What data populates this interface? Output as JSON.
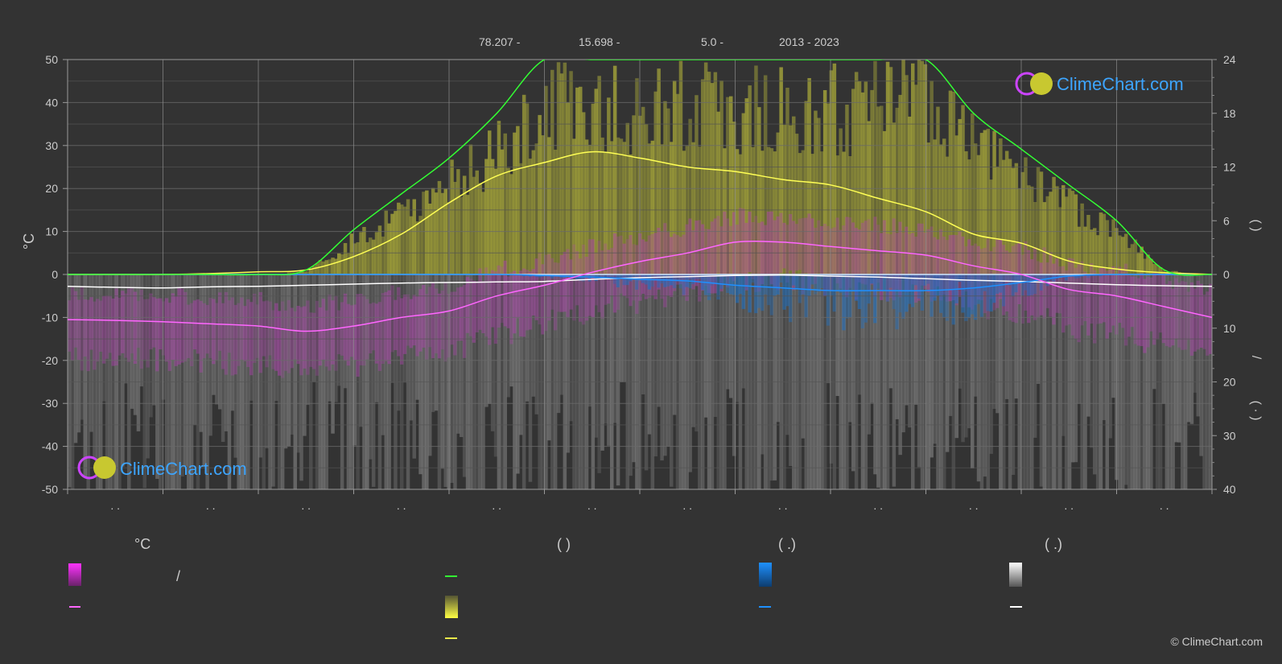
{
  "header": {
    "latitude": "78.207 -",
    "longitude": "15.698 -",
    "elevation": "5.0 -",
    "period": "2013 - 2023"
  },
  "colors": {
    "background": "#333333",
    "grid": "#5a5a5a",
    "temperature": "#ff00ff",
    "temperature_mean": "#ff66ff",
    "daylight": "#33ff33",
    "sunshine": "#e8e84a",
    "sunshine_fill": "#b5b53a",
    "rain": "#1e90ff",
    "snow": "#ffffff",
    "precip_bars": "#7a7a7a"
  },
  "logo": {
    "text": "ClimeChart.com"
  },
  "copyright": "© ClimeChart.com",
  "legend": {
    "temp_header": "°C",
    "temp_range_label": "/",
    "sun_header": "(          )",
    "rain_header": "(   .)",
    "snow_header": "(   .)"
  },
  "chart_data": {
    "type": "line",
    "left_axis": {
      "label": "°C",
      "ticks": [
        "50",
        "40",
        "30",
        "20",
        "10",
        "0",
        "-10",
        "-20",
        "-30",
        "-40",
        "-50"
      ],
      "range": [
        -50,
        50
      ]
    },
    "right_axis_top": {
      "ticks": [
        "24",
        "18",
        "12",
        "6",
        "0"
      ],
      "range": [
        0,
        24
      ]
    },
    "right_axis_bottom": {
      "ticks": [
        "10",
        "20",
        "30",
        "40"
      ],
      "range": [
        0,
        40
      ]
    },
    "right_axis_labels": {
      "top": "(   )",
      "middle": "/",
      "bottom": "( · )"
    },
    "months": [
      ". .",
      ". .",
      ". .",
      ". .",
      ". .",
      ". .",
      ". .",
      ". .",
      ". .",
      ". .",
      ". .",
      ". ."
    ],
    "x": [
      0,
      0.5,
      1,
      1.5,
      2,
      2.5,
      3,
      3.5,
      4,
      4.5,
      5,
      5.5,
      6,
      6.5,
      7,
      7.5,
      8,
      8.5,
      9,
      9.5,
      10,
      10.5,
      11,
      11.5,
      12
    ],
    "series": [
      {
        "key": "daylight",
        "unit": "hours",
        "values": [
          0,
          0,
          0,
          0,
          0,
          0.5,
          5,
          9,
          13,
          18,
          24,
          24,
          24,
          24,
          24,
          24,
          24,
          24,
          24,
          18,
          14,
          10,
          6,
          0.5,
          0
        ]
      },
      {
        "key": "sunshine",
        "unit": "hours",
        "values": [
          0,
          0,
          0,
          0.1,
          0.3,
          0.5,
          2,
          4.5,
          8,
          11,
          12.5,
          13.7,
          13,
          12,
          11.5,
          10.6,
          10,
          8.5,
          7,
          4.5,
          3.5,
          1.5,
          0.6,
          0.2,
          0
        ]
      },
      {
        "key": "temp_mean",
        "unit": "°C",
        "values": [
          -10.5,
          -10.7,
          -11,
          -11.5,
          -12,
          -13.2,
          -12,
          -10,
          -8.5,
          -5,
          -2.5,
          0.5,
          3,
          5,
          7.5,
          7.5,
          6.5,
          5.5,
          4.5,
          2,
          0,
          -3.5,
          -5,
          -7.5,
          -10
        ]
      },
      {
        "key": "rain",
        "unit": "mm",
        "values": [
          0,
          0,
          0,
          0,
          0,
          0,
          0,
          0,
          0,
          0,
          0.2,
          0.5,
          0.9,
          1.2,
          2,
          2.5,
          3,
          3,
          3,
          2.5,
          1.5,
          0.3,
          0,
          0,
          0
        ]
      },
      {
        "key": "snow",
        "unit": "mm",
        "values": [
          2.2,
          2.4,
          2.5,
          2.3,
          2.2,
          2,
          1.8,
          1.6,
          1.5,
          1.4,
          1.3,
          0.9,
          0.6,
          0.4,
          0.2,
          0.1,
          0.3,
          0.5,
          0.8,
          1.1,
          1.3,
          1.6,
          1.9,
          2.1,
          2.2
        ]
      }
    ]
  }
}
